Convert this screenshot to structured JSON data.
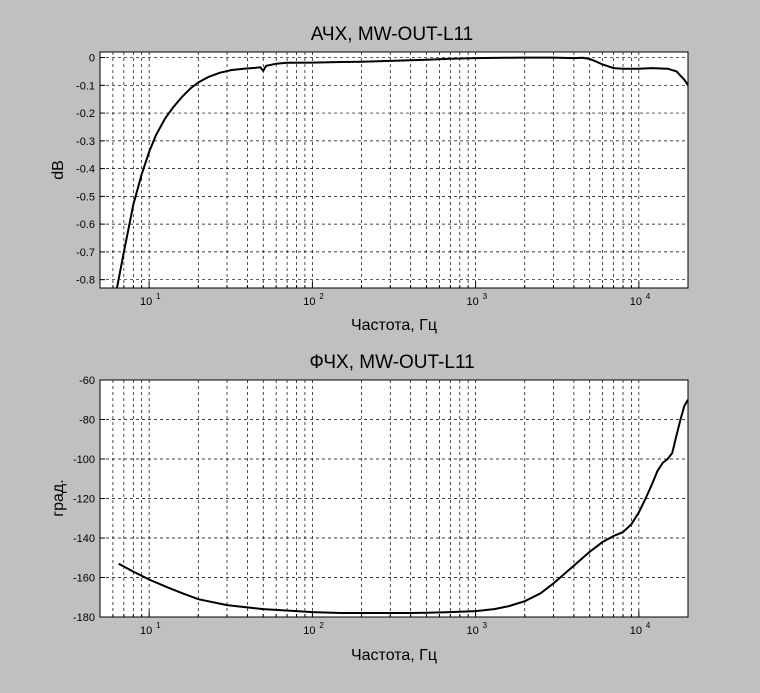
{
  "background": "#c0c0c0",
  "chart_data": [
    {
      "type": "line",
      "title": "АЧХ, MW-OUT-L11",
      "xlabel": "Частота, Гц",
      "ylabel": "dB",
      "x_scale": "log",
      "xlim": [
        5,
        20000
      ],
      "ylim": [
        -0.83,
        0.02
      ],
      "grid": true,
      "xticks": [
        10,
        100,
        1000,
        10000
      ],
      "xtick_labels": [
        {
          "base": "10",
          "exp": "1"
        },
        {
          "base": "10",
          "exp": "2"
        },
        {
          "base": "10",
          "exp": "3"
        },
        {
          "base": "10",
          "exp": "4"
        }
      ],
      "yticks": [
        0,
        -0.1,
        -0.2,
        -0.3,
        -0.4,
        -0.5,
        -0.6,
        -0.7,
        -0.8
      ],
      "ytick_labels": [
        "0",
        "-0.1",
        "-0.2",
        "-0.3",
        "-0.4",
        "-0.5",
        "-0.6",
        "-0.7",
        "-0.8"
      ],
      "line_color": "#000000",
      "series": [
        {
          "x": [
            6.3,
            7,
            8,
            9,
            10,
            11,
            12.5,
            14,
            16,
            18,
            20,
            23,
            27,
            32,
            38,
            45,
            48,
            50,
            52,
            60,
            70,
            100,
            150,
            200,
            300,
            500,
            700,
            1000,
            1500,
            2000,
            3000,
            4000,
            4500,
            5000,
            5500,
            6000,
            7000,
            8000,
            10000,
            12000,
            15000,
            17000,
            19000,
            20000
          ],
          "y": [
            -0.84,
            -0.7,
            -0.53,
            -0.42,
            -0.34,
            -0.28,
            -0.22,
            -0.18,
            -0.14,
            -0.11,
            -0.09,
            -0.07,
            -0.055,
            -0.045,
            -0.04,
            -0.037,
            -0.035,
            -0.048,
            -0.03,
            -0.022,
            -0.019,
            -0.018,
            -0.016,
            -0.015,
            -0.012,
            -0.008,
            -0.004,
            -0.002,
            -0.001,
            0,
            0,
            -0.002,
            -0.001,
            -0.005,
            -0.015,
            -0.025,
            -0.038,
            -0.04,
            -0.04,
            -0.038,
            -0.04,
            -0.05,
            -0.08,
            -0.1
          ]
        }
      ]
    },
    {
      "type": "line",
      "title": "ФЧХ, MW-OUT-L11",
      "xlabel": "Частота, Гц",
      "ylabel": "град.",
      "x_scale": "log",
      "xlim": [
        5,
        20000
      ],
      "ylim": [
        -180,
        -60
      ],
      "grid": true,
      "xticks": [
        10,
        100,
        1000,
        10000
      ],
      "xtick_labels": [
        {
          "base": "10",
          "exp": "1"
        },
        {
          "base": "10",
          "exp": "2"
        },
        {
          "base": "10",
          "exp": "3"
        },
        {
          "base": "10",
          "exp": "4"
        }
      ],
      "yticks": [
        -60,
        -80,
        -100,
        -120,
        -140,
        -160,
        -180
      ],
      "ytick_labels": [
        "-60",
        "-80",
        "-100",
        "-120",
        "-140",
        "-160",
        "-180"
      ],
      "line_color": "#000000",
      "series": [
        {
          "x": [
            6.5,
            8,
            10,
            13,
            16,
            20,
            30,
            50,
            80,
            100,
            150,
            200,
            300,
            400,
            500,
            700,
            1000,
            1300,
            1600,
            2000,
            2500,
            3000,
            4000,
            5000,
            6000,
            7000,
            8000,
            9000,
            10000,
            11000,
            12000,
            13000,
            14000,
            15000,
            16000,
            17000,
            18000,
            19000,
            20000
          ],
          "y": [
            -153,
            -157,
            -161,
            -165,
            -168,
            -171,
            -174,
            -176,
            -177,
            -177.5,
            -178,
            -178,
            -178,
            -178,
            -177.8,
            -177.5,
            -177,
            -176,
            -174.5,
            -172,
            -168,
            -163,
            -154,
            -147,
            -142,
            -139,
            -137,
            -133,
            -127,
            -120,
            -113,
            -106,
            -102,
            -100,
            -97,
            -88,
            -80,
            -73,
            -70
          ]
        }
      ]
    }
  ]
}
